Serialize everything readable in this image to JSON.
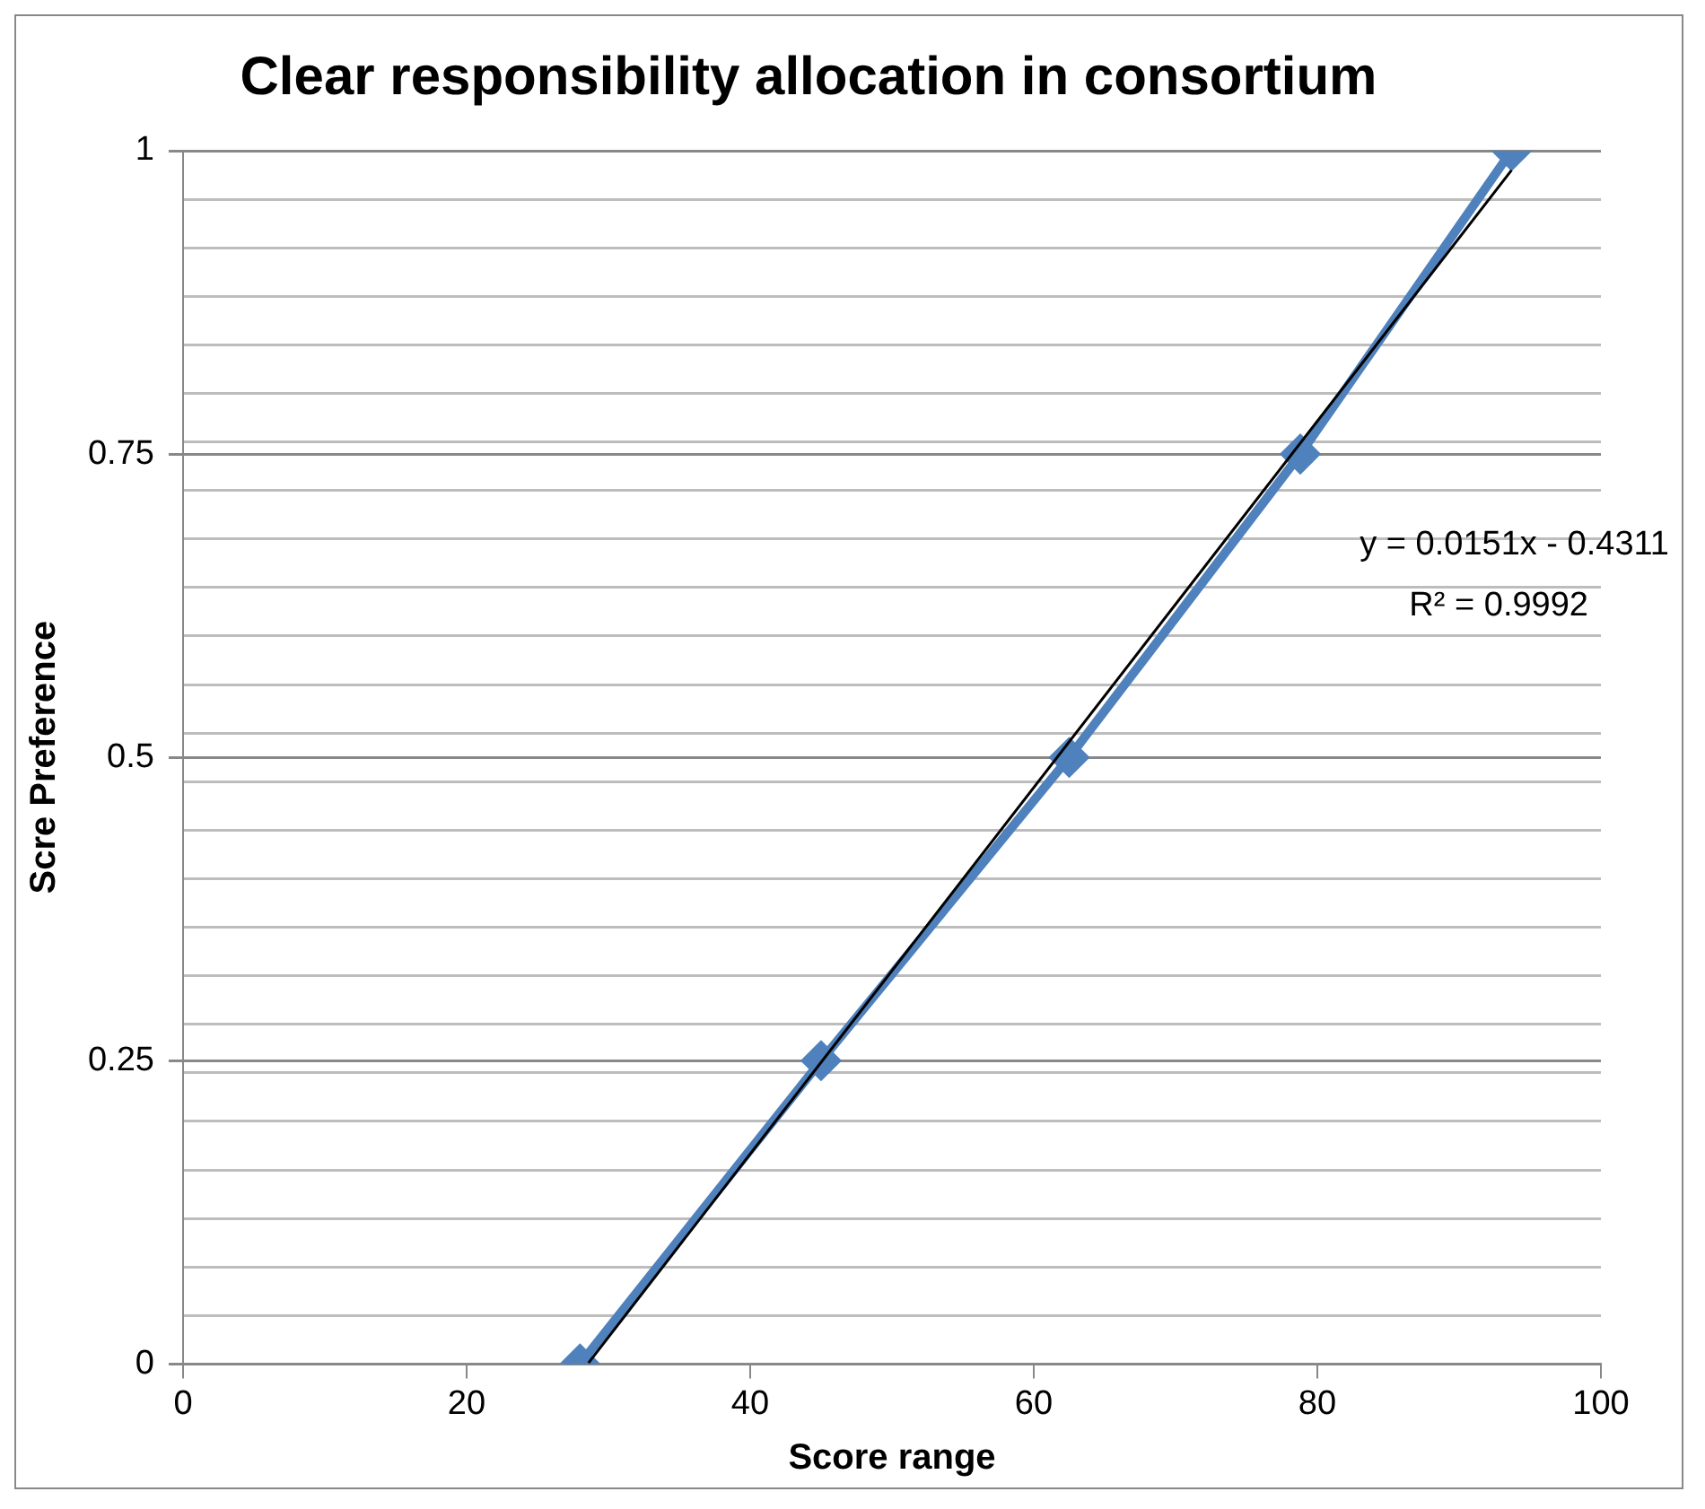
{
  "chart_data": {
    "type": "line",
    "title": "Clear responsibility allocation in consortium",
    "xlabel": "Score range",
    "ylabel": "Scre Preference",
    "x": [
      28,
      45,
      62.5,
      78.8,
      93.7
    ],
    "series": [
      {
        "color": "#4f81bd",
        "values": [
          0,
          0.25,
          0.5,
          0.75,
          1
        ],
        "marker": "diamond"
      },
      {
        "color": "#000000",
        "x": [
          28.6,
          93.7
        ],
        "values": [
          0.001,
          0.984
        ],
        "marker": "none"
      }
    ],
    "xlim": [
      0,
      100
    ],
    "xticks": [
      0,
      20,
      40,
      60,
      80,
      100
    ],
    "ylim": [
      0,
      1
    ],
    "yticks": [
      0,
      {
        "value": 0.04,
        "label": null
      },
      {
        "value": 0.08,
        "label": null
      },
      {
        "value": 0.12,
        "label": null
      },
      {
        "value": 0.16,
        "label": null
      },
      {
        "value": 0.2,
        "label": null
      },
      {
        "value": 0.24,
        "label": null
      },
      0.25,
      {
        "value": 0.28,
        "label": null
      },
      {
        "value": 0.32,
        "label": null
      },
      {
        "value": 0.36,
        "label": null
      },
      {
        "value": 0.4,
        "label": null
      },
      {
        "value": 0.44,
        "label": null
      },
      {
        "value": 0.48,
        "label": null
      },
      0.5,
      {
        "value": 0.52,
        "label": null
      },
      {
        "value": 0.56,
        "label": null
      },
      {
        "value": 0.6,
        "label": null
      },
      {
        "value": 0.64,
        "label": null
      },
      {
        "value": 0.68,
        "label": null
      },
      {
        "value": 0.72,
        "label": null
      },
      0.75,
      {
        "value": 0.76,
        "label": null
      },
      {
        "value": 0.8,
        "label": null
      },
      {
        "value": 0.84,
        "label": null
      },
      {
        "value": 0.88,
        "label": null
      },
      {
        "value": 0.92,
        "label": null
      },
      {
        "value": 0.96,
        "label": null
      },
      1
    ],
    "grid": "y",
    "legend": false,
    "annotations": [
      "y = 0.0151x - 0.4311",
      "R² = 0.9992"
    ]
  }
}
